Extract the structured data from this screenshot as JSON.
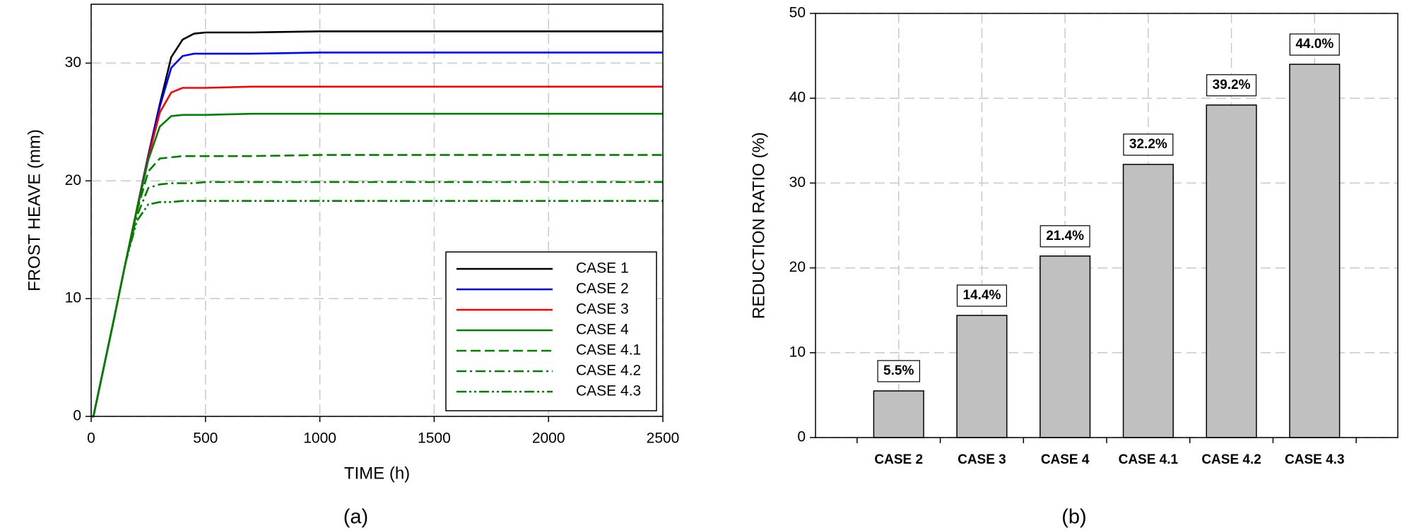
{
  "chart_data": [
    {
      "type": "line",
      "caption": "(a)",
      "x_label": "TIME (h)",
      "y_label": "FROST HEAVE (mm)",
      "x": [
        0,
        10,
        50,
        100,
        150,
        200,
        250,
        300,
        350,
        400,
        450,
        500,
        700,
        1000,
        1500,
        2000,
        2500
      ],
      "xlim": [
        0,
        2500
      ],
      "xticks": [
        0,
        500,
        1000,
        1500,
        2000,
        2500
      ],
      "ylim": [
        0,
        35
      ],
      "yticks": [
        0,
        10,
        20,
        30
      ],
      "grid": true,
      "legend": "lower right",
      "series": [
        {
          "name": "CASE 1",
          "color": "#000000",
          "linestyle": "solid",
          "values": [
            0,
            0,
            3.7,
            8.3,
            13.0,
            17.6,
            22.2,
            26.5,
            30.5,
            32.0,
            32.5,
            32.6,
            32.6,
            32.7,
            32.7,
            32.7,
            32.7
          ]
        },
        {
          "name": "CASE 2",
          "color": "#0000ff",
          "linestyle": "solid",
          "values": [
            0,
            0,
            3.7,
            8.3,
            13.0,
            17.6,
            22.2,
            26.3,
            29.6,
            30.6,
            30.8,
            30.8,
            30.8,
            30.9,
            30.9,
            30.9,
            30.9
          ]
        },
        {
          "name": "CASE 3",
          "color": "#ff0000",
          "linestyle": "solid",
          "values": [
            0,
            0,
            3.7,
            8.3,
            13.0,
            17.6,
            22.0,
            25.8,
            27.5,
            27.9,
            27.9,
            27.9,
            28.0,
            28.0,
            28.0,
            28.0,
            28.0
          ]
        },
        {
          "name": "CASE 4",
          "color": "#008000",
          "linestyle": "solid",
          "values": [
            0,
            0,
            3.7,
            8.3,
            13.0,
            17.5,
            21.8,
            24.6,
            25.5,
            25.6,
            25.6,
            25.6,
            25.7,
            25.7,
            25.7,
            25.7,
            25.7
          ]
        },
        {
          "name": "CASE 4.1",
          "color": "#008000",
          "linestyle": "dashed",
          "values": [
            0,
            0,
            3.7,
            8.3,
            13.0,
            17.4,
            20.8,
            21.9,
            22.0,
            22.1,
            22.1,
            22.1,
            22.1,
            22.2,
            22.2,
            22.2,
            22.2
          ]
        },
        {
          "name": "CASE 4.2",
          "color": "#008000",
          "linestyle": "dashdot",
          "values": [
            0,
            0,
            3.7,
            8.3,
            13.0,
            17.0,
            19.4,
            19.7,
            19.8,
            19.8,
            19.8,
            19.9,
            19.9,
            19.9,
            19.9,
            19.9,
            19.9
          ]
        },
        {
          "name": "CASE 4.3",
          "color": "#008000",
          "linestyle": "dashdotdot",
          "values": [
            0,
            0,
            3.7,
            8.3,
            13.0,
            16.6,
            18.0,
            18.2,
            18.2,
            18.3,
            18.3,
            18.3,
            18.3,
            18.3,
            18.3,
            18.3,
            18.3
          ]
        }
      ]
    },
    {
      "type": "bar",
      "caption": "(b)",
      "y_label": "REDUCTION RATIO (%)",
      "categories": [
        "CASE 2",
        "CASE 3",
        "CASE 4",
        "CASE 4.1",
        "CASE 4.2",
        "CASE 4.3"
      ],
      "values": [
        5.5,
        14.4,
        21.4,
        32.2,
        39.2,
        44.0
      ],
      "value_labels": [
        "5.5%",
        "14.4%",
        "21.4%",
        "32.2%",
        "39.2%",
        "44.0%"
      ],
      "color": "#c0c0c0",
      "ylim": [
        0,
        50
      ],
      "yticks": [
        0,
        10,
        20,
        30,
        40,
        50
      ],
      "grid": true
    }
  ]
}
